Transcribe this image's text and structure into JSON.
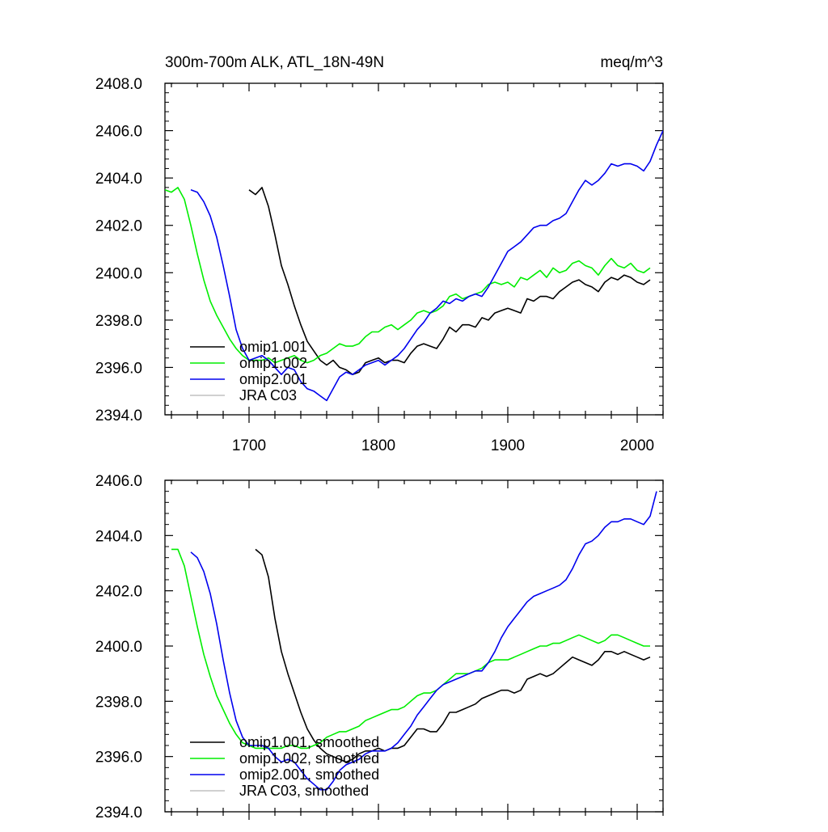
{
  "chart_data": [
    {
      "type": "line",
      "title": "300m-700m ALK, ATL_18N-49N",
      "units": "meq/m^3",
      "xlim": [
        1635,
        2020
      ],
      "ylim": [
        2394,
        2408
      ],
      "x_ticks": [
        1700,
        1800,
        1900,
        2000
      ],
      "y_ticks": [
        "2394.0",
        "2396.0",
        "2398.0",
        "2400.0",
        "2402.0",
        "2404.0",
        "2406.0",
        "2408.0"
      ],
      "legend_position": "bottom-left",
      "series": [
        {
          "name": "omip1.001",
          "color": "#000000",
          "x": [
            1700,
            1705,
            1710,
            1715,
            1720,
            1725,
            1730,
            1735,
            1740,
            1745,
            1750,
            1755,
            1760,
            1765,
            1770,
            1775,
            1780,
            1785,
            1790,
            1795,
            1800,
            1805,
            1810,
            1815,
            1820,
            1825,
            1830,
            1835,
            1840,
            1845,
            1850,
            1855,
            1860,
            1865,
            1870,
            1875,
            1880,
            1885,
            1890,
            1895,
            1900,
            1905,
            1910,
            1915,
            1920,
            1925,
            1930,
            1935,
            1940,
            1945,
            1950,
            1955,
            1960,
            1965,
            1970,
            1975,
            1980,
            1985,
            1990,
            1995,
            2000,
            2005,
            2010
          ],
          "values": [
            2403.5,
            2403.3,
            2403.6,
            2402.8,
            2401.6,
            2400.3,
            2399.5,
            2398.6,
            2397.8,
            2397.1,
            2396.7,
            2396.3,
            2396.1,
            2396.3,
            2396.0,
            2395.9,
            2395.7,
            2395.8,
            2396.2,
            2396.3,
            2396.4,
            2396.2,
            2396.3,
            2396.3,
            2396.2,
            2396.6,
            2396.9,
            2397.0,
            2396.9,
            2396.8,
            2397.2,
            2397.7,
            2397.5,
            2397.8,
            2397.8,
            2397.7,
            2398.1,
            2398.0,
            2398.3,
            2398.4,
            2398.5,
            2398.4,
            2398.3,
            2398.9,
            2398.8,
            2399.0,
            2399.0,
            2398.9,
            2399.2,
            2399.4,
            2399.6,
            2399.7,
            2399.5,
            2399.4,
            2399.2,
            2399.6,
            2399.8,
            2399.7,
            2399.9,
            2399.8,
            2399.6,
            2399.5,
            2399.7
          ]
        },
        {
          "name": "omip1.002",
          "color": "#00ee00",
          "x": [
            1635,
            1640,
            1645,
            1650,
            1655,
            1660,
            1665,
            1670,
            1675,
            1680,
            1685,
            1690,
            1695,
            1700,
            1705,
            1710,
            1715,
            1720,
            1725,
            1730,
            1735,
            1740,
            1745,
            1750,
            1755,
            1760,
            1765,
            1770,
            1775,
            1780,
            1785,
            1790,
            1795,
            1800,
            1805,
            1810,
            1815,
            1820,
            1825,
            1830,
            1835,
            1840,
            1845,
            1850,
            1855,
            1860,
            1865,
            1870,
            1875,
            1880,
            1885,
            1890,
            1895,
            1900,
            1905,
            1910,
            1915,
            1920,
            1925,
            1930,
            1935,
            1940,
            1945,
            1950,
            1955,
            1960,
            1965,
            1970,
            1975,
            1980,
            1985,
            1990,
            1995,
            2000,
            2005,
            2010
          ],
          "values": [
            2403.5,
            2403.4,
            2403.6,
            2403.1,
            2402.0,
            2400.8,
            2399.7,
            2398.8,
            2398.2,
            2397.7,
            2397.2,
            2396.8,
            2396.5,
            2396.3,
            2396.3,
            2396.3,
            2396.4,
            2396.2,
            2396.3,
            2396.4,
            2396.5,
            2396.3,
            2396.2,
            2396.3,
            2396.5,
            2396.6,
            2396.8,
            2397.0,
            2396.9,
            2396.9,
            2397.0,
            2397.3,
            2397.5,
            2397.5,
            2397.7,
            2397.8,
            2397.6,
            2397.8,
            2398.0,
            2398.3,
            2398.4,
            2398.3,
            2398.4,
            2398.6,
            2399.0,
            2399.1,
            2398.9,
            2399.0,
            2399.1,
            2399.2,
            2399.5,
            2399.6,
            2399.5,
            2399.6,
            2399.4,
            2399.8,
            2399.7,
            2399.9,
            2400.1,
            2399.8,
            2400.2,
            2400.0,
            2400.1,
            2400.4,
            2400.5,
            2400.3,
            2400.2,
            2399.9,
            2400.3,
            2400.6,
            2400.3,
            2400.2,
            2400.4,
            2400.1,
            2400.0,
            2400.2
          ]
        },
        {
          "name": "omip2.001",
          "color": "#0000ee",
          "x": [
            1655,
            1660,
            1665,
            1670,
            1675,
            1680,
            1685,
            1690,
            1695,
            1700,
            1705,
            1710,
            1715,
            1720,
            1725,
            1730,
            1735,
            1740,
            1745,
            1750,
            1755,
            1760,
            1765,
            1770,
            1775,
            1780,
            1785,
            1790,
            1795,
            1800,
            1805,
            1810,
            1815,
            1820,
            1825,
            1830,
            1835,
            1840,
            1845,
            1850,
            1855,
            1860,
            1865,
            1870,
            1875,
            1880,
            1885,
            1890,
            1895,
            1900,
            1905,
            1910,
            1915,
            1920,
            1925,
            1930,
            1935,
            1940,
            1945,
            1950,
            1955,
            1960,
            1965,
            1970,
            1975,
            1980,
            1985,
            1990,
            1995,
            2000,
            2005,
            2010,
            2015,
            2020
          ],
          "values": [
            2403.5,
            2403.4,
            2403.0,
            2402.4,
            2401.5,
            2400.3,
            2399.0,
            2397.6,
            2396.8,
            2396.3,
            2396.4,
            2396.5,
            2396.3,
            2396.0,
            2395.7,
            2396.0,
            2395.9,
            2395.4,
            2395.1,
            2395.0,
            2394.8,
            2394.6,
            2395.1,
            2395.6,
            2395.8,
            2395.7,
            2395.9,
            2396.1,
            2396.2,
            2396.3,
            2396.1,
            2396.3,
            2396.5,
            2396.8,
            2397.2,
            2397.6,
            2397.9,
            2398.3,
            2398.5,
            2398.8,
            2398.7,
            2398.9,
            2398.8,
            2399.0,
            2399.1,
            2399.0,
            2399.4,
            2399.9,
            2400.4,
            2400.9,
            2401.1,
            2401.3,
            2401.6,
            2401.9,
            2402.0,
            2402.0,
            2402.2,
            2402.3,
            2402.5,
            2403.0,
            2403.5,
            2403.9,
            2403.7,
            2403.9,
            2404.2,
            2404.6,
            2404.5,
            2404.6,
            2404.6,
            2404.5,
            2404.3,
            2404.7,
            2405.4,
            2406.0
          ]
        },
        {
          "name": "JRA C03",
          "color": "#c0c0c0",
          "x": [],
          "values": []
        }
      ]
    },
    {
      "type": "line",
      "title": "",
      "xlim": [
        1635,
        2020
      ],
      "ylim": [
        2394,
        2406
      ],
      "y_ticks": [
        "2394.0",
        "2396.0",
        "2398.0",
        "2400.0",
        "2402.0",
        "2404.0",
        "2406.0"
      ],
      "legend_position": "bottom-left",
      "series": [
        {
          "name": "omip1.001, smoothed",
          "color": "#000000",
          "x": [
            1705,
            1710,
            1715,
            1720,
            1725,
            1730,
            1735,
            1740,
            1745,
            1750,
            1755,
            1760,
            1765,
            1770,
            1775,
            1780,
            1785,
            1790,
            1795,
            1800,
            1805,
            1810,
            1815,
            1820,
            1825,
            1830,
            1835,
            1840,
            1845,
            1850,
            1855,
            1860,
            1865,
            1870,
            1875,
            1880,
            1885,
            1890,
            1895,
            1900,
            1905,
            1910,
            1915,
            1920,
            1925,
            1930,
            1935,
            1940,
            1945,
            1950,
            1955,
            1960,
            1965,
            1970,
            1975,
            1980,
            1985,
            1990,
            1995,
            2000,
            2005,
            2010
          ],
          "values": [
            2403.5,
            2403.3,
            2402.5,
            2401.0,
            2399.8,
            2399.0,
            2398.3,
            2397.6,
            2397.0,
            2396.6,
            2396.3,
            2396.1,
            2396.0,
            2395.9,
            2395.8,
            2395.9,
            2396.1,
            2396.2,
            2396.2,
            2396.3,
            2396.2,
            2396.3,
            2396.3,
            2396.4,
            2396.7,
            2397.0,
            2397.0,
            2396.9,
            2396.9,
            2397.2,
            2397.6,
            2397.6,
            2397.7,
            2397.8,
            2397.9,
            2398.1,
            2398.2,
            2398.3,
            2398.4,
            2398.4,
            2398.3,
            2398.4,
            2398.8,
            2398.9,
            2399.0,
            2398.9,
            2399.0,
            2399.2,
            2399.4,
            2399.6,
            2399.5,
            2399.4,
            2399.3,
            2399.5,
            2399.8,
            2399.8,
            2399.7,
            2399.8,
            2399.7,
            2399.6,
            2399.5,
            2399.6
          ]
        },
        {
          "name": "omip1.002, smoothed",
          "color": "#00ee00",
          "x": [
            1640,
            1645,
            1650,
            1655,
            1660,
            1665,
            1670,
            1675,
            1680,
            1685,
            1690,
            1695,
            1700,
            1705,
            1710,
            1715,
            1720,
            1725,
            1730,
            1735,
            1740,
            1745,
            1750,
            1755,
            1760,
            1765,
            1770,
            1775,
            1780,
            1785,
            1790,
            1795,
            1800,
            1805,
            1810,
            1815,
            1820,
            1825,
            1830,
            1835,
            1840,
            1845,
            1850,
            1855,
            1860,
            1865,
            1870,
            1875,
            1880,
            1885,
            1890,
            1895,
            1900,
            1905,
            1910,
            1915,
            1920,
            1925,
            1930,
            1935,
            1940,
            1945,
            1950,
            1955,
            1960,
            1965,
            1970,
            1975,
            1980,
            1985,
            1990,
            1995,
            2000,
            2005,
            2010
          ],
          "values": [
            2403.5,
            2403.5,
            2402.9,
            2401.8,
            2400.7,
            2399.7,
            2398.9,
            2398.2,
            2397.7,
            2397.2,
            2396.8,
            2396.5,
            2396.4,
            2396.3,
            2396.3,
            2396.3,
            2396.3,
            2396.3,
            2396.4,
            2396.4,
            2396.3,
            2396.3,
            2396.4,
            2396.5,
            2396.7,
            2396.8,
            2396.9,
            2396.9,
            2397.0,
            2397.1,
            2397.3,
            2397.4,
            2397.5,
            2397.6,
            2397.7,
            2397.7,
            2397.8,
            2398.0,
            2398.2,
            2398.3,
            2398.3,
            2398.4,
            2398.6,
            2398.8,
            2399.0,
            2399.0,
            2399.0,
            2399.1,
            2399.2,
            2399.4,
            2399.5,
            2399.5,
            2399.5,
            2399.6,
            2399.7,
            2399.8,
            2399.9,
            2400.0,
            2400.0,
            2400.1,
            2400.1,
            2400.2,
            2400.3,
            2400.4,
            2400.3,
            2400.2,
            2400.1,
            2400.2,
            2400.4,
            2400.4,
            2400.3,
            2400.2,
            2400.1,
            2400.0,
            2400.0
          ]
        },
        {
          "name": "omip2.001, smoothed",
          "color": "#0000ee",
          "x": [
            1655,
            1660,
            1665,
            1670,
            1675,
            1680,
            1685,
            1690,
            1695,
            1700,
            1705,
            1710,
            1715,
            1720,
            1725,
            1730,
            1735,
            1740,
            1745,
            1750,
            1755,
            1760,
            1765,
            1770,
            1775,
            1780,
            1785,
            1790,
            1795,
            1800,
            1805,
            1810,
            1815,
            1820,
            1825,
            1830,
            1835,
            1840,
            1845,
            1850,
            1855,
            1860,
            1865,
            1870,
            1875,
            1880,
            1885,
            1890,
            1895,
            1900,
            1905,
            1910,
            1915,
            1920,
            1925,
            1930,
            1935,
            1940,
            1945,
            1950,
            1955,
            1960,
            1965,
            1970,
            1975,
            1980,
            1985,
            1990,
            1995,
            2000,
            2005,
            2010,
            2015
          ],
          "values": [
            2403.4,
            2403.2,
            2402.7,
            2401.9,
            2400.8,
            2399.5,
            2398.3,
            2397.3,
            2396.7,
            2396.4,
            2396.4,
            2396.4,
            2396.3,
            2396.0,
            2395.8,
            2395.9,
            2395.8,
            2395.5,
            2395.2,
            2395.0,
            2394.8,
            2394.8,
            2395.1,
            2395.5,
            2395.7,
            2395.8,
            2395.9,
            2396.1,
            2396.2,
            2396.2,
            2396.2,
            2396.3,
            2396.5,
            2396.8,
            2397.1,
            2397.5,
            2397.8,
            2398.1,
            2398.4,
            2398.6,
            2398.7,
            2398.8,
            2398.9,
            2399.0,
            2399.1,
            2399.1,
            2399.4,
            2399.8,
            2400.3,
            2400.7,
            2401.0,
            2401.3,
            2401.6,
            2401.8,
            2401.9,
            2402.0,
            2402.1,
            2402.2,
            2402.4,
            2402.8,
            2403.3,
            2403.7,
            2403.8,
            2404.0,
            2404.3,
            2404.5,
            2404.5,
            2404.6,
            2404.6,
            2404.5,
            2404.4,
            2404.7,
            2405.6
          ]
        },
        {
          "name": "JRA C03, smoothed",
          "color": "#c0c0c0",
          "x": [],
          "values": []
        }
      ]
    }
  ]
}
